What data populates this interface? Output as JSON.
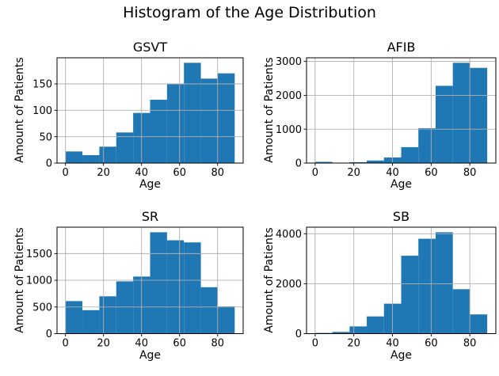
{
  "figure": {
    "title": "Histogram of the Age Distribution",
    "bar_color": "#1f77b4",
    "grid_color": "#b0b0b0",
    "spine_color": "#000000",
    "background_color": "#ffffff"
  },
  "chart_data": [
    {
      "type": "bar",
      "title": "GSVT",
      "xlabel": "Age",
      "ylabel": "Amount of Patients",
      "bin_edges": [
        0,
        8.9,
        17.8,
        26.7,
        35.6,
        44.5,
        53.4,
        62.3,
        71.2,
        80.1,
        89.0
      ],
      "values": [
        22,
        15,
        31,
        58,
        95,
        120,
        150,
        190,
        160,
        170
      ],
      "xticks": [
        0,
        20,
        40,
        60,
        80
      ],
      "yticks": [
        0,
        50,
        100,
        150
      ],
      "xlim": [
        -4.45,
        93.45
      ],
      "ylim": [
        0,
        199.5
      ],
      "grid": true
    },
    {
      "type": "bar",
      "title": "AFIB",
      "xlabel": "Age",
      "ylabel": "Amount of Patients",
      "bin_edges": [
        0,
        8.9,
        17.8,
        26.7,
        35.6,
        44.5,
        53.4,
        62.3,
        71.2,
        80.1,
        89.0
      ],
      "values": [
        35,
        5,
        25,
        75,
        165,
        470,
        1030,
        2280,
        2960,
        2810
      ],
      "xticks": [
        0,
        20,
        40,
        60,
        80
      ],
      "yticks": [
        0,
        1000,
        2000,
        3000
      ],
      "xlim": [
        -4.45,
        93.45
      ],
      "ylim": [
        0,
        3108
      ],
      "grid": true
    },
    {
      "type": "bar",
      "title": "SR",
      "xlabel": "Age",
      "ylabel": "Amount of Patients",
      "bin_edges": [
        0,
        8.9,
        17.8,
        26.7,
        35.6,
        44.5,
        53.4,
        62.3,
        71.2,
        80.1,
        89.0
      ],
      "values": [
        610,
        440,
        700,
        980,
        1070,
        1900,
        1750,
        1710,
        870,
        510
      ],
      "xticks": [
        0,
        20,
        40,
        60,
        80
      ],
      "yticks": [
        0,
        500,
        1000,
        1500
      ],
      "xlim": [
        -4.45,
        93.45
      ],
      "ylim": [
        0,
        1995
      ],
      "grid": true
    },
    {
      "type": "bar",
      "title": "SB",
      "xlabel": "Age",
      "ylabel": "Amount of Patients",
      "bin_edges": [
        0,
        8.9,
        17.8,
        26.7,
        35.6,
        44.5,
        53.4,
        62.3,
        71.2,
        80.1,
        89.0
      ],
      "values": [
        30,
        70,
        290,
        690,
        1200,
        3120,
        3800,
        4060,
        1780,
        770
      ],
      "xticks": [
        0,
        20,
        40,
        60,
        80
      ],
      "yticks": [
        0,
        2000,
        4000
      ],
      "xlim": [
        -4.45,
        93.45
      ],
      "ylim": [
        0,
        4263
      ],
      "grid": true
    }
  ]
}
